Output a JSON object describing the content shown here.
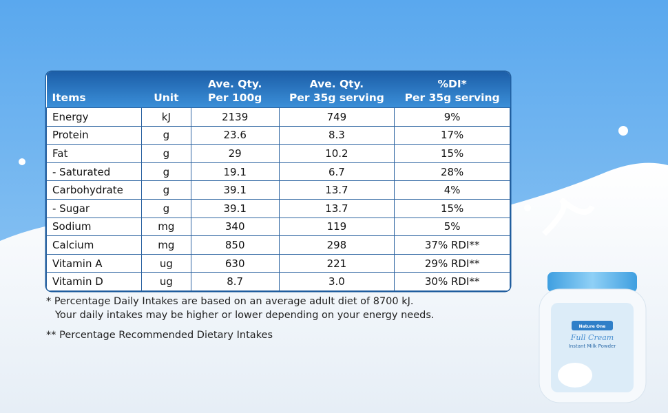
{
  "table": {
    "header": [
      [
        "Items"
      ],
      [
        "Unit"
      ],
      [
        "Ave. Qty.",
        "Per 100g"
      ],
      [
        "Ave. Qty.",
        "Per 35g serving"
      ],
      [
        "%DI*",
        "Per 35g serving"
      ]
    ],
    "rows": [
      [
        "Energy",
        "kJ",
        "2139",
        "749",
        "9%"
      ],
      [
        "Protein",
        "g",
        "23.6",
        "8.3",
        "17%"
      ],
      [
        "Fat",
        "g",
        "29",
        "10.2",
        "15%"
      ],
      [
        "- Saturated",
        "g",
        "19.1",
        "6.7",
        "28%"
      ],
      [
        "Carbohydrate",
        "g",
        "39.1",
        "13.7",
        "4%"
      ],
      [
        "- Sugar",
        "g",
        "39.1",
        "13.7",
        "15%"
      ],
      [
        "Sodium",
        "mg",
        "340",
        "119",
        "5%"
      ],
      [
        "Calcium",
        "mg",
        "850",
        "298",
        "37% RDI**"
      ],
      [
        "Vitamin A",
        "ug",
        "630",
        "221",
        "29% RDI**"
      ],
      [
        "Vitamin D",
        "ug",
        "8.7",
        "3.0",
        "30% RDI**"
      ]
    ]
  },
  "footnotes": [
    [
      "* Percentage Daily Intakes are based on an average adult diet of 8700 kJ.",
      "Your daily intakes may be higher or lower depending on your energy needs."
    ],
    [
      "** Percentage Recommended Dietary Intakes"
    ]
  ],
  "product": {
    "brand": "Nature One",
    "name": "Full Cream",
    "subtitle": "Instant Milk Powder"
  }
}
